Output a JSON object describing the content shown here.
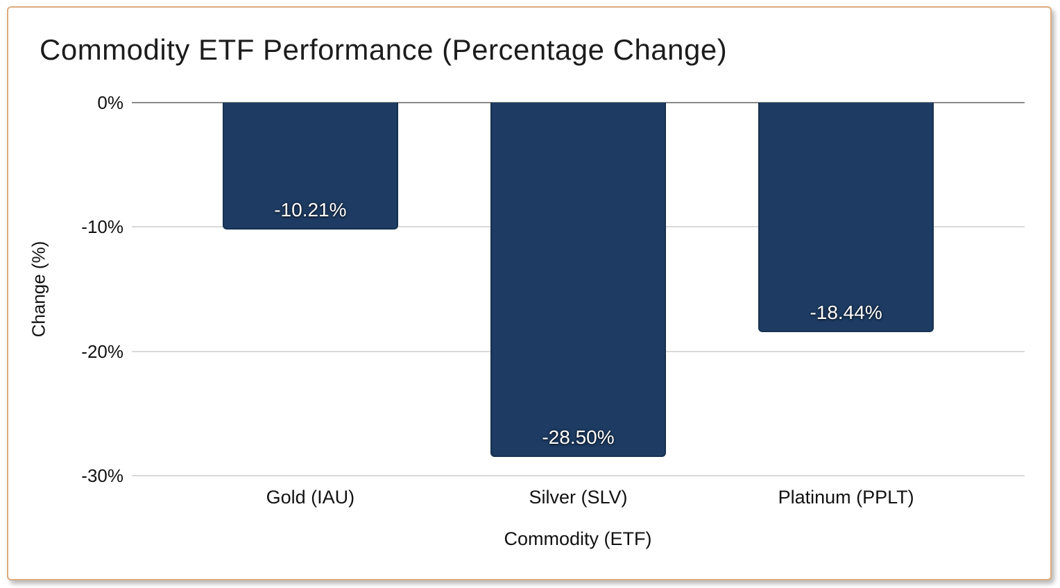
{
  "chart_data": {
    "type": "bar",
    "title": "Commodity ETF Performance (Percentage Change)",
    "xlabel": "Commodity (ETF)",
    "ylabel": "Change (%)",
    "categories": [
      "Gold (IAU)",
      "Silver (SLV)",
      "Platinum (PPLT)"
    ],
    "values": [
      -10.21,
      -28.5,
      -18.44
    ],
    "value_labels": [
      "-10.21%",
      "-28.50%",
      "-18.44%"
    ],
    "y_ticks": [
      {
        "label": "0%",
        "value": 0
      },
      {
        "label": "-10%",
        "value": -10
      },
      {
        "label": "-20%",
        "value": -20
      },
      {
        "label": "-30%",
        "value": -30
      }
    ],
    "ylim": [
      -30,
      0
    ],
    "grid": true,
    "legend": false,
    "bar_color": "#1e3c63",
    "bar_border_color": "#16304e",
    "bar_label_color": "#ffffff"
  },
  "colors": {
    "card_border": "#dcab7c",
    "zero_line": "#8a8a8a",
    "gridline": "#d9d9d9",
    "text": "#111111"
  }
}
